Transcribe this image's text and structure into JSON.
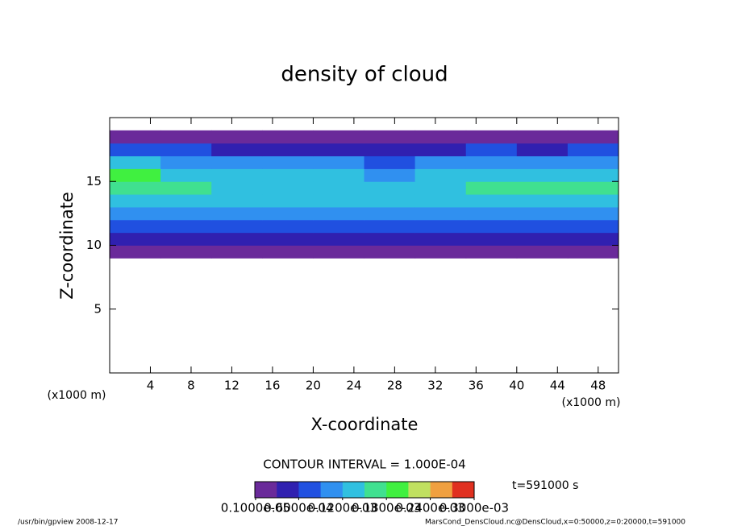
{
  "chart_data": {
    "type": "contour",
    "title": "density of cloud",
    "x_label": "X-coordinate",
    "y_label": "Z-coordinate",
    "x_unit": "(x1000 m)",
    "y_unit": "(x1000 m)",
    "contour_interval": "CONTOUR INTERVAL = 1.000E-04",
    "time_label": "t=591000 s",
    "footer_left": "/usr/bin/gpview  2008-12-17",
    "footer_right": "MarsCond_DensCloud.nc@DensCloud,x=0:50000,z=0:20000,t=591000",
    "xlim": [
      0,
      50
    ],
    "ylim": [
      0,
      20
    ],
    "xticks": [
      4,
      8,
      12,
      16,
      20,
      24,
      28,
      32,
      36,
      40,
      44,
      48
    ],
    "yticks": [
      5,
      10,
      15
    ],
    "x": [
      2.5,
      7.5,
      12.5,
      17.5,
      22.5,
      27.5,
      32.5,
      37.5,
      42.5,
      47.5
    ],
    "z": [
      9.5,
      10.5,
      11.5,
      12.5,
      13.5,
      14.5,
      15.5,
      16.5,
      17.5,
      18.5
    ],
    "values": [
      [
        2e-05,
        1.5e-05,
        1e-05,
        1.5e-05,
        1e-05,
        1.5e-05,
        1e-05,
        1.5e-05,
        1e-05,
        1.5e-05
      ],
      [
        5e-05,
        4e-05,
        3.5e-05,
        4e-05,
        4e-05,
        3.5e-05,
        4e-05,
        4e-05,
        3.5e-05,
        4e-05
      ],
      [
        8e-05,
        7e-05,
        6.5e-05,
        7e-05,
        7e-05,
        6.5e-05,
        7e-05,
        7.5e-05,
        7e-05,
        7e-05
      ],
      [
        0.00011,
        0.0001,
        9e-05,
        9.5e-05,
        0.0001,
        0.0001,
        0.000105,
        0.00011,
        0.0001,
        0.000105
      ],
      [
        0.00014,
        0.00013,
        0.00012,
        0.00012,
        0.000125,
        0.00012,
        0.00013,
        0.00014,
        0.000135,
        0.00014
      ],
      [
        0.00017,
        0.00015,
        0.00013,
        0.000125,
        0.00013,
        0.000125,
        0.00014,
        0.00016,
        0.00015,
        0.00015
      ],
      [
        0.00018,
        0.00014,
        0.00012,
        0.00012,
        0.00012,
        0.000115,
        0.00013,
        0.00014,
        0.000135,
        0.00014
      ],
      [
        0.00012,
        0.0001,
        9e-05,
        9e-05,
        9e-05,
        8.5e-05,
        9e-05,
        0.0001,
        9.5e-05,
        0.0001
      ],
      [
        7e-05,
        6e-05,
        5e-05,
        5e-05,
        5e-05,
        5e-05,
        5e-05,
        6e-05,
        5.5e-05,
        6e-05
      ],
      [
        2e-05,
        2e-05,
        1.5e-05,
        2e-05,
        1.5e-05,
        1.5e-05,
        2e-05,
        2e-05,
        1.5e-05,
        2e-05
      ]
    ],
    "clim": [
      0,
      0.0003
    ],
    "colors": [
      "#6a2a9a",
      "#3020b0",
      "#2050e0",
      "#3090f0",
      "#30c0e0",
      "#40e090",
      "#40f040",
      "#c0e060",
      "#f0a040",
      "#e03020"
    ],
    "colorbar_ticks": [
      {
        "value": 1e-06,
        "label": "0.1000e-05"
      },
      {
        "value": 6e-05,
        "label": "0.6000e-04"
      },
      {
        "value": 0.00012,
        "label": "0.1200e-03"
      },
      {
        "value": 0.00018,
        "label": "0.1800e-03"
      },
      {
        "value": 0.00024,
        "label": "0.2400e-03"
      },
      {
        "value": 0.0003,
        "label": "0.3000e-03"
      }
    ]
  }
}
